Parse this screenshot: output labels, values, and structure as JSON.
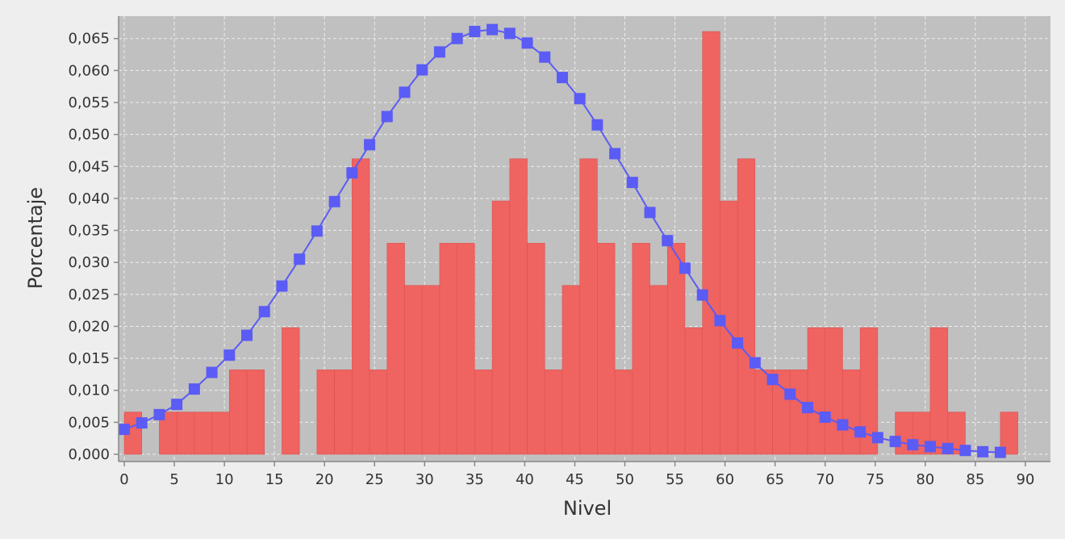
{
  "chart_data": {
    "type": "bar",
    "xlabel": "Nivel",
    "ylabel": "Porcentaje",
    "xlim": [
      0,
      92
    ],
    "ylim": [
      0,
      0.0685
    ],
    "x_ticks": [
      0,
      5,
      10,
      15,
      20,
      25,
      30,
      35,
      40,
      45,
      50,
      55,
      60,
      65,
      70,
      75,
      80,
      85,
      90
    ],
    "y_ticks": [
      0,
      0.005,
      0.01,
      0.015,
      0.02,
      0.025,
      0.03,
      0.035,
      0.04,
      0.045,
      0.05,
      0.055,
      0.06,
      0.065
    ],
    "y_tick_labels": [
      "0,000",
      "0,005",
      "0,010",
      "0,015",
      "0,020",
      "0,025",
      "0,030",
      "0,035",
      "0,040",
      "0,045",
      "0,050",
      "0,055",
      "0,060",
      "0,065"
    ],
    "grid": true,
    "colors": {
      "plot_background": "#c0c0c0",
      "grid": "#eeeeee",
      "histogram": "#ef6360",
      "histogram_edge": "#d85451",
      "curve": "#5b5bf5",
      "axis": "#888888"
    },
    "histogram": {
      "bin_start": 0,
      "bin_width": 1.75,
      "values": [
        0.0066,
        0,
        0.0066,
        0.0066,
        0.0066,
        0.0066,
        0.0132,
        0.0132,
        0,
        0.0198,
        0,
        0.0132,
        0.0132,
        0.0462,
        0.0132,
        0.033,
        0.0264,
        0.0264,
        0.033,
        0.033,
        0.0132,
        0.0396,
        0.0462,
        0.033,
        0.0132,
        0.0264,
        0.0462,
        0.033,
        0.0132,
        0.033,
        0.0264,
        0.033,
        0.0198,
        0.0661,
        0.0396,
        0.0462,
        0.0132,
        0.0132,
        0.0132,
        0.0198,
        0.0198,
        0.0132,
        0.0198,
        0,
        0.0066,
        0.0066,
        0.0198,
        0.0066,
        0,
        0,
        0.0066
      ]
    },
    "series": [
      {
        "type": "line",
        "marker": "square",
        "x": [
          0,
          1.75,
          3.5,
          5.25,
          7,
          8.75,
          10.5,
          12.25,
          14,
          15.75,
          17.5,
          19.25,
          21,
          22.75,
          24.5,
          26.25,
          28,
          29.75,
          31.5,
          33.25,
          35,
          36.75,
          38.5,
          40.25,
          42,
          43.75,
          45.5,
          47.25,
          49,
          50.75,
          52.5,
          54.25,
          56,
          57.75,
          59.5,
          61.25,
          63,
          64.75,
          66.5,
          68.25,
          70,
          71.75,
          73.5,
          75.25,
          77,
          78.75,
          80.5,
          82.25,
          84,
          85.75,
          87.5
        ],
        "values": [
          0.0039,
          0.0049,
          0.0062,
          0.0078,
          0.0102,
          0.0128,
          0.0155,
          0.0186,
          0.0223,
          0.0263,
          0.0305,
          0.0349,
          0.0395,
          0.044,
          0.0484,
          0.0528,
          0.0566,
          0.0601,
          0.0629,
          0.065,
          0.0661,
          0.0664,
          0.0658,
          0.0643,
          0.0621,
          0.0589,
          0.0556,
          0.0515,
          0.047,
          0.0425,
          0.0378,
          0.0334,
          0.0291,
          0.0249,
          0.0209,
          0.0174,
          0.0143,
          0.0117,
          0.0094,
          0.0073,
          0.0058,
          0.0046,
          0.0035,
          0.0026,
          0.002,
          0.0015,
          0.0012,
          0.0009,
          0.0006,
          0.0004,
          0.0003
        ]
      }
    ]
  }
}
